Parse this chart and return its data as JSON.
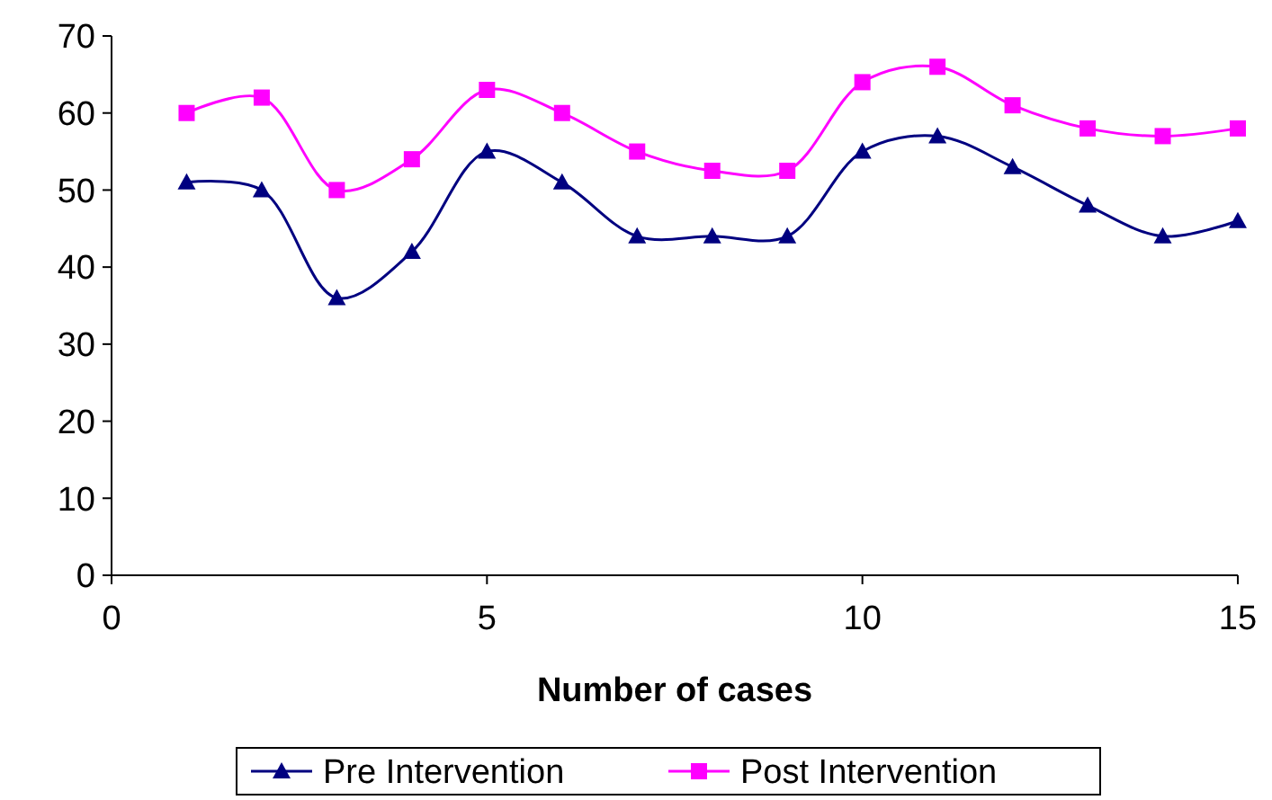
{
  "chart_data": {
    "type": "line",
    "xlabel": "Number of cases",
    "x": [
      1,
      2,
      3,
      4,
      5,
      6,
      7,
      8,
      9,
      10,
      11,
      12,
      13,
      14,
      15
    ],
    "xlim": [
      0,
      15
    ],
    "xticks": [
      0,
      5,
      10,
      15
    ],
    "ylim": [
      0,
      70
    ],
    "yticks": [
      0,
      10,
      20,
      30,
      40,
      50,
      60,
      70
    ],
    "grid": false,
    "legend": "bottom",
    "line_style": "solid",
    "series": [
      {
        "name": "Pre Intervention",
        "color": "#000080",
        "marker": "triangle",
        "values": [
          51,
          50,
          36,
          42,
          55,
          51,
          44,
          44,
          44,
          55,
          57,
          53,
          48,
          44,
          46
        ]
      },
      {
        "name": "Post Intervention",
        "color": "#ff00ff",
        "marker": "square",
        "values": [
          60,
          62,
          50,
          54,
          63,
          60,
          55,
          52.5,
          52.5,
          64,
          66,
          61,
          58,
          57,
          58
        ]
      }
    ]
  }
}
